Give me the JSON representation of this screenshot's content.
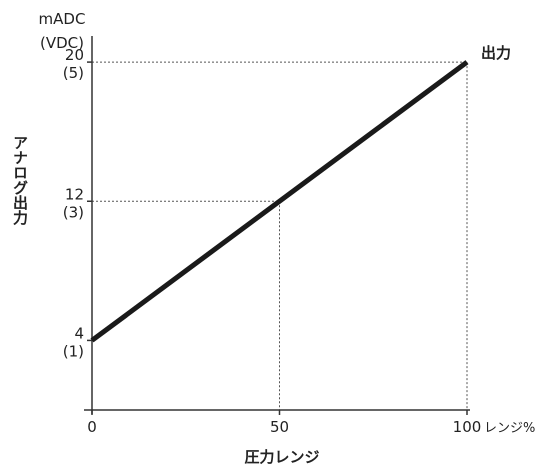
{
  "chart_data": {
    "type": "line",
    "xlabel": "圧力レンジ",
    "xunit": "レンジ%",
    "ylabel": "アナログ出力",
    "yunit_lines": [
      "mADC",
      "(VDC)"
    ],
    "xlim": [
      0,
      100
    ],
    "ylim": [
      0,
      21.5
    ],
    "x_ticks": [
      {
        "value": 0,
        "label": "0"
      },
      {
        "value": 50,
        "label": "50"
      },
      {
        "value": 100,
        "label": "100"
      }
    ],
    "y_ticks": [
      {
        "value": 4,
        "label": "4",
        "sublabel": "(1)"
      },
      {
        "value": 12,
        "label": "12",
        "sublabel": "(3)"
      },
      {
        "value": 20,
        "label": "20",
        "sublabel": "(5)"
      }
    ],
    "series": [
      {
        "name": "出力",
        "x": [
          0,
          50,
          100
        ],
        "y": [
          4,
          12,
          20
        ]
      }
    ],
    "guides": [
      {
        "x": 50,
        "y": 12
      },
      {
        "x": 100,
        "y": 20
      }
    ],
    "grid": false,
    "colors": {
      "line": "#1a1a1a",
      "axis": "#333333",
      "guide": "#555555"
    }
  }
}
